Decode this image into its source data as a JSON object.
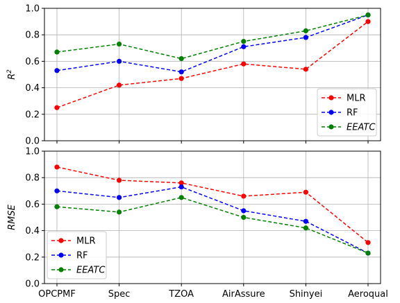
{
  "chart_data": [
    {
      "type": "line",
      "categories": [
        "OPCPMF",
        "Spec",
        "TZOA",
        "AirAssure",
        "Shinyei",
        "Aeroqual"
      ],
      "ylabel": "R",
      "ylabel_superscript": "2",
      "ylim": [
        0,
        1.0
      ],
      "yticks": [
        "0.0",
        "0.2",
        "0.4",
        "0.6",
        "0.8",
        "1.0"
      ],
      "grid": true,
      "legend_position": "lower-right",
      "series": [
        {
          "name": "MLR",
          "color": "#ff0000",
          "values": [
            0.25,
            0.42,
            0.47,
            0.58,
            0.54,
            0.9
          ]
        },
        {
          "name": "RF",
          "color": "#0000ff",
          "values": [
            0.53,
            0.6,
            0.52,
            0.71,
            0.78,
            0.95
          ]
        },
        {
          "name": "EEATC",
          "color": "#008000",
          "italic": true,
          "values": [
            0.67,
            0.73,
            0.62,
            0.75,
            0.83,
            0.95
          ]
        }
      ]
    },
    {
      "type": "line",
      "categories": [
        "OPCPMF",
        "Spec",
        "TZOA",
        "AirAssure",
        "Shinyei",
        "Aeroqual"
      ],
      "ylabel": "RMSE",
      "ylim": [
        0,
        1.0
      ],
      "yticks": [
        "0.0",
        "0.2",
        "0.4",
        "0.6",
        "0.8",
        "1.0"
      ],
      "grid": true,
      "legend_position": "lower-left",
      "series": [
        {
          "name": "MLR",
          "color": "#ff0000",
          "values": [
            0.88,
            0.78,
            0.76,
            0.66,
            0.69,
            0.31
          ]
        },
        {
          "name": "RF",
          "color": "#0000ff",
          "values": [
            0.7,
            0.65,
            0.73,
            0.55,
            0.47,
            0.23
          ]
        },
        {
          "name": "EEATC",
          "color": "#008000",
          "italic": true,
          "values": [
            0.58,
            0.54,
            0.65,
            0.5,
            0.42,
            0.23
          ]
        }
      ]
    }
  ]
}
